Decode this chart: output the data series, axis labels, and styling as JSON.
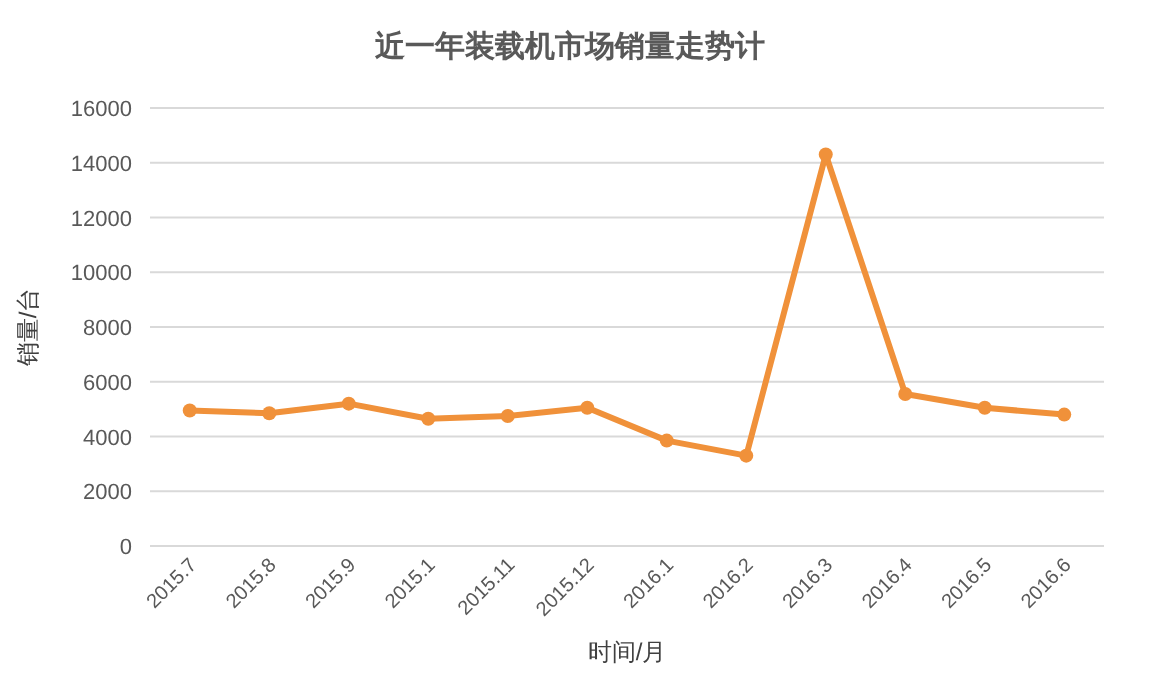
{
  "chart_data": {
    "type": "line",
    "title": "近一年装载机市场销量走势计",
    "xlabel": "时间/月",
    "ylabel": "销量/台",
    "categories": [
      "2015.7",
      "2015.8",
      "2015.9",
      "2015.1",
      "2015.11",
      "2015.12",
      "2016.1",
      "2016.2",
      "2016.3",
      "2016.4",
      "2016.5",
      "2016.6"
    ],
    "series": [
      {
        "color": "#f0913a",
        "values": [
          4950,
          4850,
          5200,
          4650,
          4750,
          5050,
          3850,
          3300,
          14300,
          5550,
          5050,
          4800
        ]
      }
    ],
    "ylim": [
      0,
      16000
    ],
    "yticks": [
      0,
      2000,
      4000,
      6000,
      8000,
      10000,
      12000,
      14000,
      16000
    ],
    "grid": "y",
    "marker": "circle",
    "line_style": "solid"
  }
}
